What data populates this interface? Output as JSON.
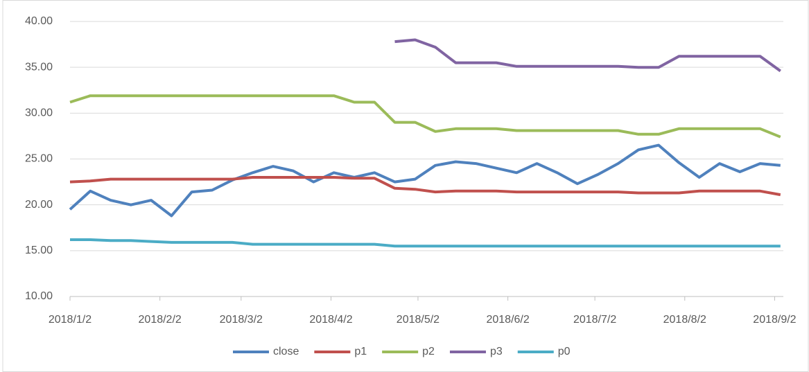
{
  "chart_data": {
    "type": "line",
    "x": [
      "2018/1/2",
      "2018/1/9",
      "2018/1/16",
      "2018/1/23",
      "2018/1/30",
      "2018/2/6",
      "2018/2/13",
      "2018/2/20",
      "2018/2/27",
      "2018/3/6",
      "2018/3/13",
      "2018/3/20",
      "2018/3/27",
      "2018/4/3",
      "2018/4/10",
      "2018/4/17",
      "2018/4/24",
      "2018/5/1",
      "2018/5/8",
      "2018/5/15",
      "2018/5/22",
      "2018/5/29",
      "2018/6/5",
      "2018/6/12",
      "2018/6/19",
      "2018/6/26",
      "2018/7/3",
      "2018/7/10",
      "2018/7/17",
      "2018/7/24",
      "2018/7/31",
      "2018/8/7",
      "2018/8/14",
      "2018/8/21",
      "2018/8/28",
      "2018/9/4"
    ],
    "series": [
      {
        "name": "close",
        "color": "#4f81bd",
        "values": [
          19.5,
          21.5,
          20.5,
          20.0,
          20.5,
          18.8,
          21.4,
          21.6,
          22.7,
          23.5,
          24.2,
          23.7,
          22.5,
          23.5,
          23.0,
          23.5,
          22.5,
          22.8,
          24.3,
          24.7,
          24.5,
          24.0,
          23.5,
          24.5,
          23.5,
          22.3,
          23.3,
          24.5,
          26.0,
          26.5,
          24.6,
          23.0,
          24.5,
          23.6,
          24.5,
          24.3
        ]
      },
      {
        "name": "p1",
        "color": "#c0504d",
        "values": [
          22.5,
          22.6,
          22.8,
          22.8,
          22.8,
          22.8,
          22.8,
          22.8,
          22.8,
          23.0,
          23.0,
          23.0,
          23.0,
          23.0,
          22.9,
          22.9,
          21.8,
          21.7,
          21.4,
          21.5,
          21.5,
          21.5,
          21.4,
          21.4,
          21.4,
          21.4,
          21.4,
          21.4,
          21.3,
          21.3,
          21.3,
          21.5,
          21.5,
          21.5,
          21.5,
          21.1
        ]
      },
      {
        "name": "p2",
        "color": "#9bbb59",
        "values": [
          31.2,
          31.9,
          31.9,
          31.9,
          31.9,
          31.9,
          31.9,
          31.9,
          31.9,
          31.9,
          31.9,
          31.9,
          31.9,
          31.9,
          31.2,
          31.2,
          29.0,
          29.0,
          28.0,
          28.3,
          28.3,
          28.3,
          28.1,
          28.1,
          28.1,
          28.1,
          28.1,
          28.1,
          27.7,
          27.7,
          28.3,
          28.3,
          28.3,
          28.3,
          28.3,
          27.4
        ]
      },
      {
        "name": "p3",
        "color": "#8064a2",
        "values": [
          null,
          null,
          null,
          null,
          null,
          null,
          null,
          null,
          null,
          null,
          null,
          null,
          null,
          null,
          null,
          null,
          37.8,
          38.0,
          37.2,
          35.5,
          35.5,
          35.5,
          35.1,
          35.1,
          35.1,
          35.1,
          35.1,
          35.1,
          35.0,
          35.0,
          36.2,
          36.2,
          36.2,
          36.2,
          36.2,
          34.6
        ]
      },
      {
        "name": "p0",
        "color": "#4bacc6",
        "values": [
          16.2,
          16.2,
          16.1,
          16.1,
          16.0,
          15.9,
          15.9,
          15.9,
          15.9,
          15.7,
          15.7,
          15.7,
          15.7,
          15.7,
          15.7,
          15.7,
          15.5,
          15.5,
          15.5,
          15.5,
          15.5,
          15.5,
          15.5,
          15.5,
          15.5,
          15.5,
          15.5,
          15.5,
          15.5,
          15.5,
          15.5,
          15.5,
          15.5,
          15.5,
          15.5,
          15.5
        ]
      }
    ],
    "xlim": [
      "2018/1/2",
      "2018/9/5"
    ],
    "xticks": [
      "2018/1/2",
      "2018/2/2",
      "2018/3/2",
      "2018/4/2",
      "2018/5/2",
      "2018/6/2",
      "2018/7/2",
      "2018/8/2",
      "2018/9/2"
    ],
    "ylim": [
      10,
      40
    ],
    "yticks": [
      {
        "value": 10,
        "label": "10.00"
      },
      {
        "value": 15,
        "label": "15.00"
      },
      {
        "value": 20,
        "label": "20.00"
      },
      {
        "value": 25,
        "label": "25.00"
      },
      {
        "value": 30,
        "label": "30.00"
      },
      {
        "value": 35,
        "label": "35.00"
      },
      {
        "value": 40,
        "label": "40.00"
      }
    ],
    "grid": true,
    "legend": "bottom"
  }
}
